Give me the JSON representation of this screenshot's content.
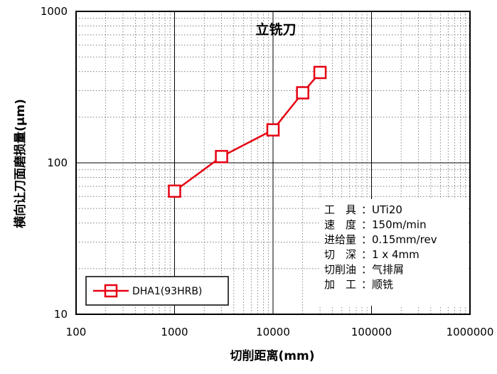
{
  "chart_data": {
    "type": "line",
    "title": "立铣刀",
    "xlabel": "切削距离(mm)",
    "ylabel": "横向让刀面磨损量(μm)",
    "x_scale": "log",
    "y_scale": "log",
    "xlim": [
      100,
      1000000
    ],
    "ylim": [
      10,
      1000
    ],
    "x_ticks": [
      "100",
      "1000",
      "10000",
      "100000",
      "1000000"
    ],
    "y_ticks": [
      "10",
      "100",
      "1000"
    ],
    "grid": "major solid, minor dotted",
    "legend_position": "bottom-left",
    "series": [
      {
        "name": "DHA1(93HRB)",
        "color": "#e60012",
        "marker": "open-square",
        "x": [
          1000,
          3000,
          10000,
          20000,
          30000
        ],
        "y": [
          65,
          110,
          165,
          290,
          395
        ]
      }
    ],
    "conditions": [
      {
        "key": "工　具",
        "value": "UTi20"
      },
      {
        "key": "速　度",
        "value": "150m/min"
      },
      {
        "key": "进给量",
        "value": "0.15mm/rev"
      },
      {
        "key": "切　深",
        "value": "1 x 4mm"
      },
      {
        "key": "切削油",
        "value": "气排屑"
      },
      {
        "key": "加　工",
        "value": "顺铣"
      }
    ]
  }
}
